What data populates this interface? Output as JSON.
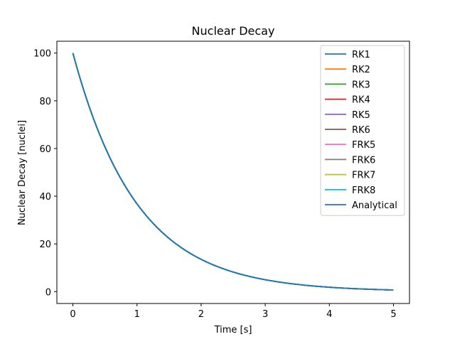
{
  "chart_data": {
    "type": "line",
    "title": "Nuclear Decay",
    "xlabel": "Time [s]",
    "ylabel": "Nuclear Decay [nuclei]",
    "xlim": [
      -0.25,
      5.25
    ],
    "ylim": [
      -4.98,
      104.98
    ],
    "xticks": [
      0,
      1,
      2,
      3,
      4,
      5
    ],
    "yticks": [
      0,
      20,
      40,
      60,
      80,
      100
    ],
    "grid": false,
    "legend_position": "upper-right",
    "model": {
      "initial": 100,
      "rate": 1.0,
      "t_start": 0,
      "t_end": 5
    },
    "series": [
      {
        "name": "RK1",
        "color": "#1f77b4"
      },
      {
        "name": "RK2",
        "color": "#ff7f0e"
      },
      {
        "name": "RK3",
        "color": "#2ca02c"
      },
      {
        "name": "RK4",
        "color": "#d62728"
      },
      {
        "name": "RK5",
        "color": "#9467bd"
      },
      {
        "name": "RK6",
        "color": "#8c564b"
      },
      {
        "name": "FRK5",
        "color": "#e377c2"
      },
      {
        "name": "FRK6",
        "color": "#7f7f7f"
      },
      {
        "name": "FRK7",
        "color": "#bcbd22"
      },
      {
        "name": "FRK8",
        "color": "#17becf"
      },
      {
        "name": "Analytical",
        "color": "#1f77b4"
      }
    ]
  }
}
